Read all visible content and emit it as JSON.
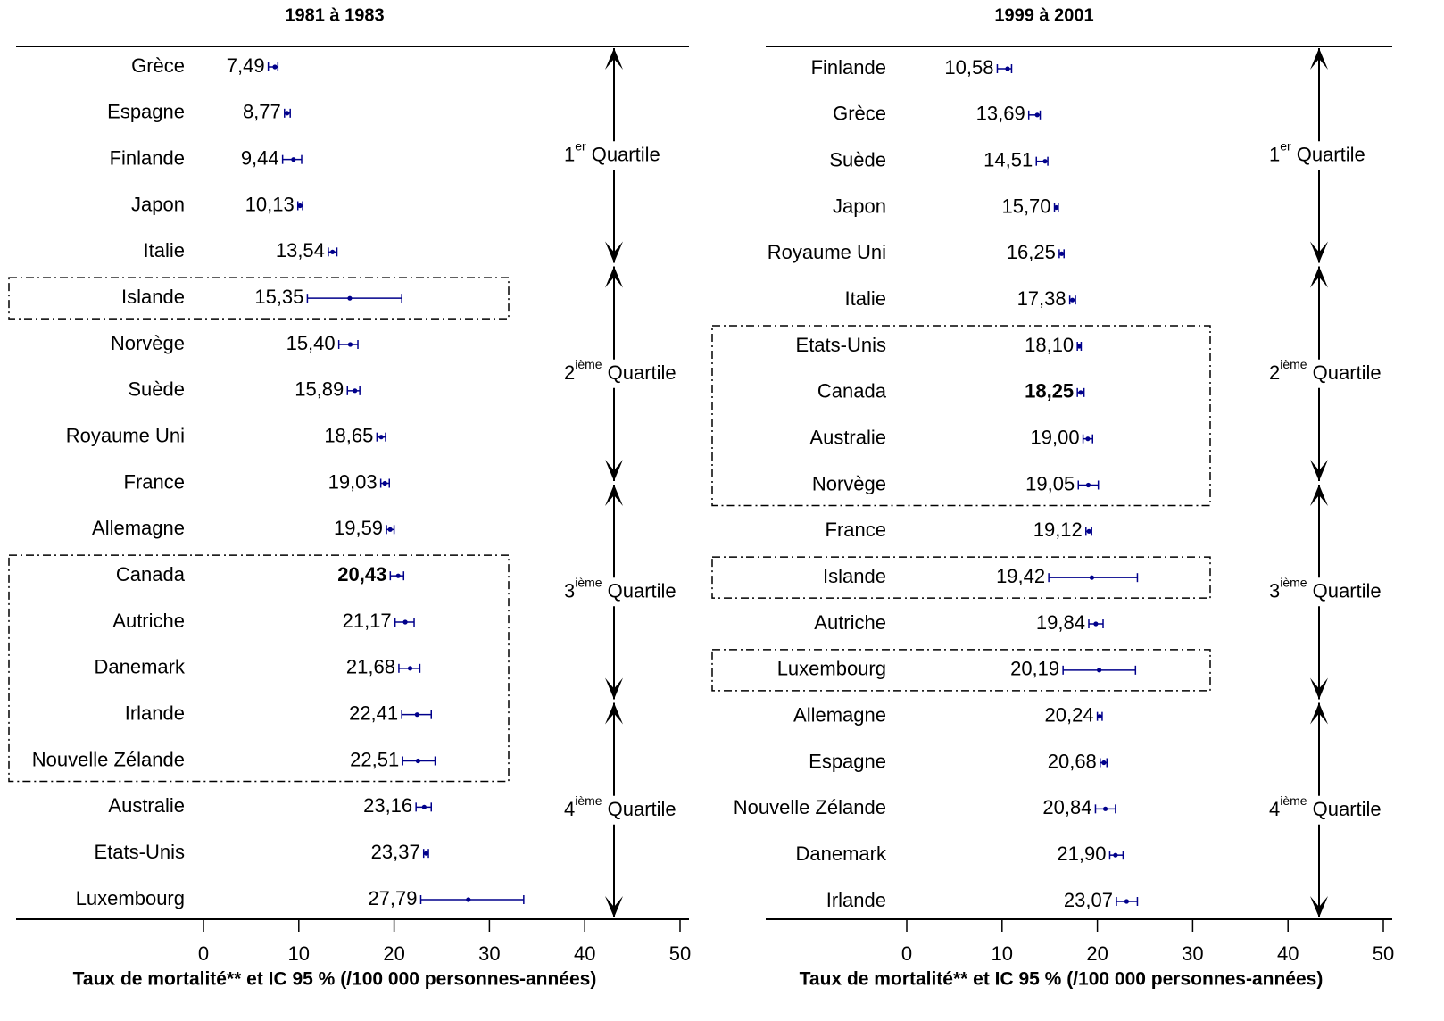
{
  "chart_data": [
    {
      "type": "dot",
      "title": "1981 à 1983",
      "xlabel": "Taux de mortalité** et IC 95 % (/100 000 personnes-années)",
      "categories": [
        "Grèce",
        "Espagne",
        "Finlande",
        "Japon",
        "Italie",
        "Islande",
        "Norvège",
        "Suède",
        "Royaume Uni",
        "France",
        "Allemagne",
        "Canada",
        "Autriche",
        "Danemark",
        "Irlande",
        "Nouvelle Zélande",
        "Australie",
        "Etats-Unis",
        "Luxembourg"
      ],
      "values": [
        7.49,
        8.77,
        9.44,
        10.13,
        13.54,
        15.35,
        15.4,
        15.89,
        18.65,
        19.03,
        19.59,
        20.43,
        21.17,
        21.68,
        22.41,
        22.51,
        23.16,
        23.37,
        27.79
      ],
      "value_labels": [
        "7,49",
        "8,77",
        "9,44",
        "10,13",
        "13,54",
        "15,35",
        "15,40",
        "15,89",
        "18,65",
        "19,03",
        "19,59",
        "20,43",
        "21,17",
        "21,68",
        "22,41",
        "22,51",
        "23,16",
        "23,37",
        "27,79"
      ],
      "ci_low": [
        6.8,
        8.5,
        8.3,
        9.9,
        13.1,
        10.9,
        14.2,
        15.1,
        18.2,
        18.6,
        19.2,
        19.6,
        20.1,
        20.5,
        20.8,
        20.9,
        22.3,
        23.1,
        22.8
      ],
      "ci_high": [
        7.8,
        9.1,
        10.3,
        10.4,
        14.0,
        20.8,
        16.2,
        16.4,
        19.1,
        19.5,
        20.0,
        21.0,
        22.1,
        22.7,
        23.9,
        24.3,
        23.9,
        23.6,
        33.6
      ],
      "color": "#00008b",
      "bold": [
        11
      ],
      "boxes": [
        {
          "from": 5,
          "to": 5
        },
        {
          "from": 11,
          "to": 15
        }
      ],
      "quartiles": [
        {
          "rank": "1",
          "suffix": "er",
          "word": "Quartile"
        },
        {
          "rank": "2",
          "suffix": "ième",
          "word": "Quartile"
        },
        {
          "rank": "3",
          "suffix": "ième",
          "word": "Quartile"
        },
        {
          "rank": "4",
          "suffix": "ième",
          "word": "Quartile"
        }
      ],
      "xlim": [
        0,
        50
      ],
      "xticks": [
        0,
        10,
        20,
        30,
        40,
        50
      ]
    },
    {
      "type": "dot",
      "title": "1999 à 2001",
      "xlabel": "Taux de mortalité** et IC 95 % (/100 000 personnes-années)",
      "categories": [
        "Finlande",
        "Grèce",
        "Suède",
        "Japon",
        "Royaume Uni",
        "Italie",
        "Etats-Unis",
        "Canada",
        "Australie",
        "Norvège",
        "France",
        "Islande",
        "Autriche",
        "Luxembourg",
        "Allemagne",
        "Espagne",
        "Nouvelle Zélande",
        "Danemark",
        "Irlande"
      ],
      "values": [
        10.58,
        13.69,
        14.51,
        15.7,
        16.25,
        17.38,
        18.1,
        18.25,
        19.0,
        19.05,
        19.12,
        19.42,
        19.84,
        20.19,
        20.24,
        20.68,
        20.84,
        21.9,
        23.07
      ],
      "value_labels": [
        "10,58",
        "13,69",
        "14,51",
        "15,70",
        "16,25",
        "17,38",
        "18,10",
        "18,25",
        "19,00",
        "19,05",
        "19,12",
        "19,42",
        "19,84",
        "20,19",
        "20,24",
        "20,68",
        "20,84",
        "21,90",
        "23,07"
      ],
      "ci_low": [
        9.5,
        12.8,
        13.6,
        15.5,
        16.0,
        17.1,
        17.9,
        17.9,
        18.5,
        18.0,
        18.8,
        14.9,
        19.1,
        16.4,
        20.0,
        20.3,
        19.8,
        21.3,
        22.0
      ],
      "ci_high": [
        11.0,
        14.0,
        14.8,
        15.9,
        16.5,
        17.7,
        18.3,
        18.6,
        19.5,
        20.1,
        19.4,
        24.2,
        20.6,
        24.0,
        20.5,
        21.0,
        21.9,
        22.7,
        24.2
      ],
      "color": "#00008b",
      "bold": [
        7
      ],
      "boxes": [
        {
          "from": 6,
          "to": 9
        },
        {
          "from": 11,
          "to": 11
        },
        {
          "from": 13,
          "to": 13
        }
      ],
      "quartiles": [
        {
          "rank": "1",
          "suffix": "er",
          "word": "Quartile"
        },
        {
          "rank": "2",
          "suffix": "ième",
          "word": "Quartile"
        },
        {
          "rank": "3",
          "suffix": "ième",
          "word": "Quartile"
        },
        {
          "rank": "4",
          "suffix": "ième",
          "word": "Quartile"
        }
      ],
      "xlim": [
        0,
        50
      ],
      "xticks": [
        0,
        10,
        20,
        30,
        40,
        50
      ]
    }
  ]
}
